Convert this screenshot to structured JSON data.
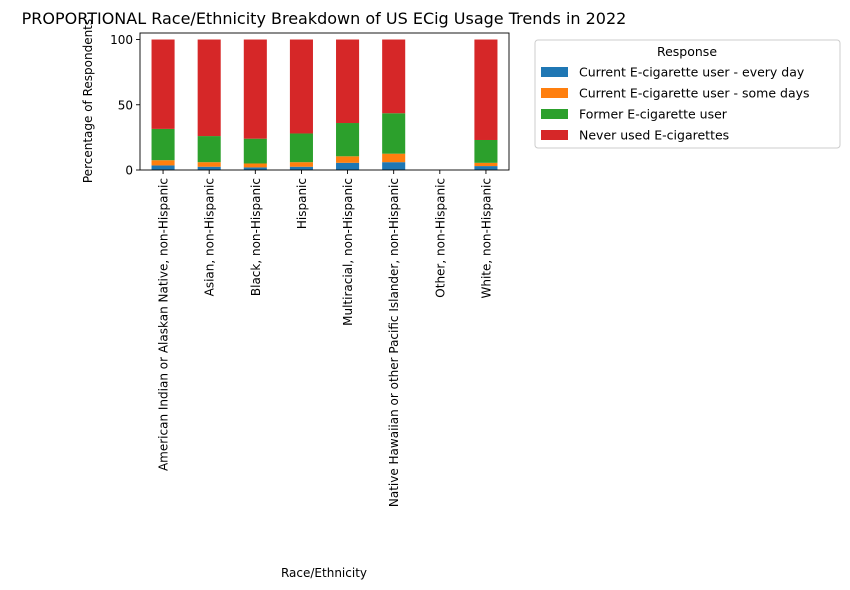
{
  "chart_data": {
    "type": "bar",
    "stacked": true,
    "title": "PROPORTIONAL Race/Ethnicity Breakdown of US ECig Usage Trends in 2022",
    "xlabel": "Race/Ethnicity",
    "ylabel": "Percentage of Respondents",
    "ylim": [
      0,
      105
    ],
    "yticks": [
      0,
      50,
      100
    ],
    "grid": false,
    "legend": {
      "title": "Response",
      "placement": "outside-top-right"
    },
    "categories": [
      "American Indian or Alaskan Native, non-Hispanic",
      "Asian, non-Hispanic",
      "Black, non-Hispanic",
      "Hispanic",
      "Multiracial, non-Hispanic",
      "Native Hawaiian or other Pacific Islander, non-Hispanic",
      "Other, non-Hispanic",
      "White, non-Hispanic"
    ],
    "series": [
      {
        "name": "Current E-cigarette user - every day",
        "color": "#1f77b4",
        "values": [
          3.5,
          2.5,
          2.0,
          2.5,
          5.5,
          6.0,
          0,
          3.0
        ]
      },
      {
        "name": "Current E-cigarette user - some days",
        "color": "#ff7f0e",
        "values": [
          4.0,
          3.5,
          3.0,
          3.5,
          5.0,
          6.5,
          0,
          2.5
        ]
      },
      {
        "name": "Former E-cigarette user",
        "color": "#2ca02c",
        "values": [
          24.0,
          20.0,
          19.0,
          22.0,
          25.5,
          31.0,
          0,
          17.5
        ]
      },
      {
        "name": "Never used E-cigarettes",
        "color": "#d62728",
        "values": [
          68.5,
          74.0,
          76.0,
          72.0,
          64.0,
          56.5,
          0,
          77.0
        ]
      }
    ]
  }
}
